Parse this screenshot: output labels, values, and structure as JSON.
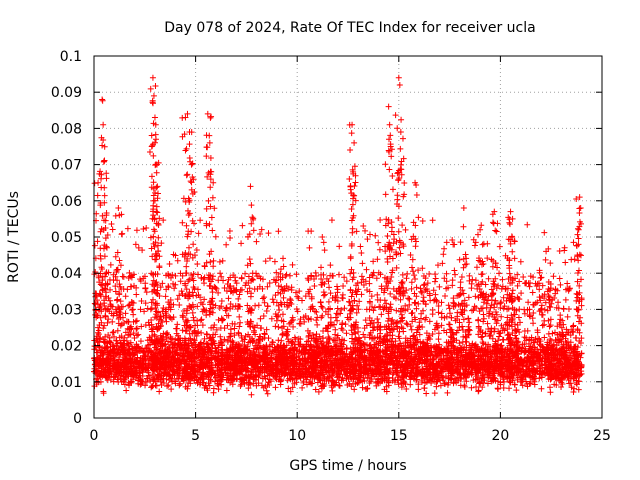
{
  "chart_data": {
    "type": "scatter",
    "title": "Day 078 of 2024, Rate Of TEC Index for receiver ucla",
    "xlabel": "GPS time / hours",
    "ylabel": "ROTI / TECUs",
    "xlim": [
      0,
      25
    ],
    "ylim": [
      0,
      0.1
    ],
    "x_ticks": [
      0,
      5,
      10,
      15,
      20,
      25
    ],
    "x_tick_labels": [
      "0",
      "5",
      "10",
      "15",
      "20",
      "25"
    ],
    "y_ticks": [
      0,
      0.01,
      0.02,
      0.03,
      0.04,
      0.05,
      0.06,
      0.07,
      0.08,
      0.09,
      0.1
    ],
    "y_tick_labels": [
      "0",
      "0.01",
      "0.02",
      "0.03",
      "0.04",
      "0.05",
      "0.06",
      "0.07",
      "0.08",
      "0.09",
      "0.1"
    ],
    "grid": true,
    "marker": "+",
    "marker_color": "#ff0000",
    "series": [
      {
        "name": "ROTI",
        "description_points": "dense cloud of measurements from 0 to 24 hours",
        "core_band": [
          0.006,
          0.022
        ],
        "peaks": [
          {
            "x": 0.2,
            "y": 0.065
          },
          {
            "x": 0.4,
            "y": 0.088
          },
          {
            "x": 0.45,
            "y": 0.081
          },
          {
            "x": 0.5,
            "y": 0.071
          },
          {
            "x": 1.2,
            "y": 0.058
          },
          {
            "x": 2.9,
            "y": 0.094
          },
          {
            "x": 2.95,
            "y": 0.089
          },
          {
            "x": 3.0,
            "y": 0.083
          },
          {
            "x": 3.05,
            "y": 0.077
          },
          {
            "x": 3.1,
            "y": 0.07
          },
          {
            "x": 3.15,
            "y": 0.062
          },
          {
            "x": 4.5,
            "y": 0.083
          },
          {
            "x": 4.6,
            "y": 0.084
          },
          {
            "x": 4.7,
            "y": 0.079
          },
          {
            "x": 4.8,
            "y": 0.07
          },
          {
            "x": 5.6,
            "y": 0.084
          },
          {
            "x": 5.7,
            "y": 0.076
          },
          {
            "x": 5.75,
            "y": 0.066
          },
          {
            "x": 7.7,
            "y": 0.064
          },
          {
            "x": 12.7,
            "y": 0.081
          },
          {
            "x": 12.8,
            "y": 0.076
          },
          {
            "x": 12.75,
            "y": 0.068
          },
          {
            "x": 14.5,
            "y": 0.086
          },
          {
            "x": 14.55,
            "y": 0.081
          },
          {
            "x": 14.6,
            "y": 0.075
          },
          {
            "x": 15.0,
            "y": 0.094
          },
          {
            "x": 15.05,
            "y": 0.092
          },
          {
            "x": 15.1,
            "y": 0.079
          },
          {
            "x": 15.8,
            "y": 0.065
          },
          {
            "x": 18.2,
            "y": 0.058
          },
          {
            "x": 19.0,
            "y": 0.052
          },
          {
            "x": 19.7,
            "y": 0.057
          },
          {
            "x": 20.5,
            "y": 0.057
          },
          {
            "x": 20.6,
            "y": 0.055
          },
          {
            "x": 23.9,
            "y": 0.061
          },
          {
            "x": 23.95,
            "y": 0.058
          }
        ]
      }
    ]
  }
}
